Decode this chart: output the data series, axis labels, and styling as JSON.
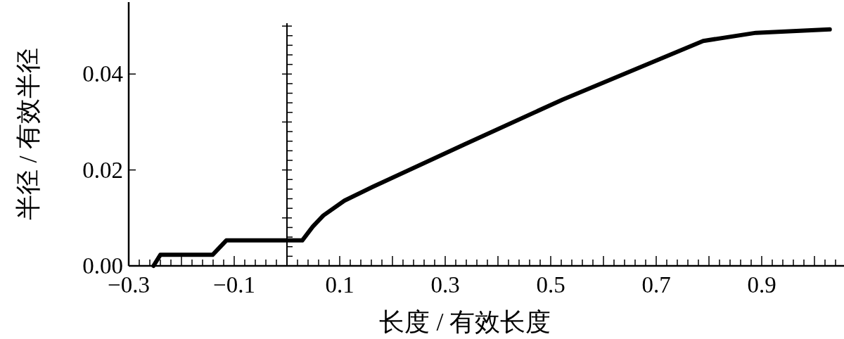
{
  "chart_data": {
    "type": "line",
    "xlabel": "长度 / 有效长度",
    "ylabel": "半径 / 有效半径",
    "x": [
      -0.253,
      -0.24,
      -0.141,
      -0.115,
      0.029,
      0.049,
      0.069,
      0.109,
      0.163,
      0.336,
      0.523,
      0.789,
      0.889,
      1.029
    ],
    "values": [
      0,
      0.0023,
      0.0023,
      0.0053,
      0.0053,
      0.0082,
      0.0105,
      0.0136,
      0.0165,
      0.0253,
      0.0347,
      0.0469,
      0.0486,
      0.0493
    ],
    "color": "#000000",
    "xlim": [
      -0.3,
      1.056
    ],
    "ylim": [
      0,
      0.055
    ],
    "xticks": [
      {
        "value": -0.3,
        "label": "−0.3"
      },
      {
        "value": -0.1,
        "label": "−0.1"
      },
      0.1,
      0.3,
      0.5,
      0.7,
      0.9
    ],
    "yticks": [
      {
        "value": 0,
        "label": "0.00"
      },
      {
        "value": 0.02,
        "label": "0.02"
      },
      {
        "value": 0.04,
        "label": "0.04"
      }
    ],
    "ref_lines": [
      {
        "axis": "x",
        "value": 0,
        "color": "#000000"
      }
    ]
  }
}
